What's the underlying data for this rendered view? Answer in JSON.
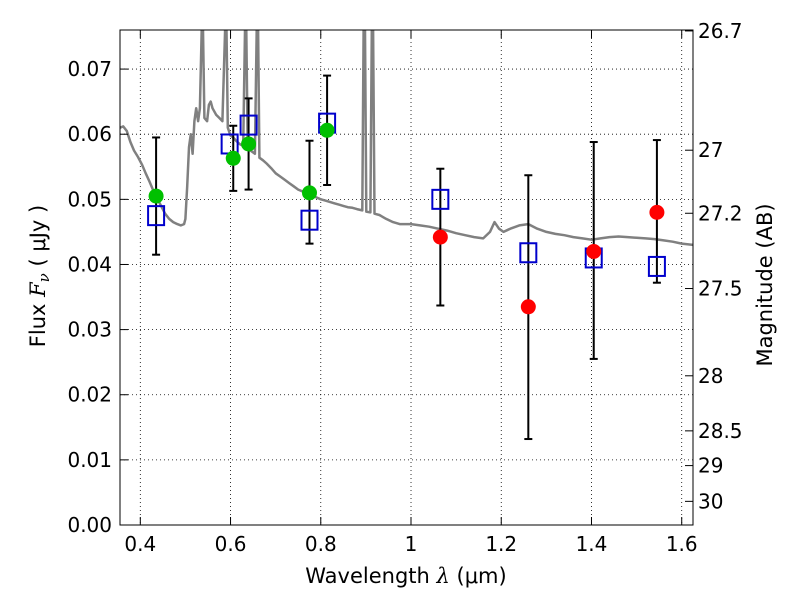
{
  "chart_data": {
    "type": "scatter",
    "xlabel": {
      "prefix": "Wavelength  ",
      "symbol": "λ",
      "unit": " (μm)"
    },
    "ylabel": {
      "prefix": "Flux  ",
      "symbol": "F",
      "sub": "ν",
      "unit": "  ( μJy )"
    },
    "y2label": "Magnitude (AB)",
    "xlim": [
      0.355,
      1.625
    ],
    "ylim": [
      0.0,
      0.076
    ],
    "xticks": [
      0.4,
      0.6,
      0.8,
      1.0,
      1.2,
      1.4,
      1.6
    ],
    "xtick_labels": [
      "0.4",
      "0.6",
      "0.8",
      "1",
      "1.2",
      "1.4",
      "1.6"
    ],
    "yticks": [
      0.0,
      0.01,
      0.02,
      0.03,
      0.04,
      0.05,
      0.06,
      0.07
    ],
    "ytick_labels": [
      "0.00",
      "0.01",
      "0.02",
      "0.03",
      "0.04",
      "0.05",
      "0.06",
      "0.07"
    ],
    "y2_ticks": [
      {
        "mag": 26.7,
        "label": "26.7"
      },
      {
        "mag": 27.0,
        "label": "27"
      },
      {
        "mag": 27.2,
        "label": "27.2"
      },
      {
        "mag": 27.5,
        "label": "27.5"
      },
      {
        "mag": 28.0,
        "label": "28"
      },
      {
        "mag": 28.5,
        "label": "28.5"
      },
      {
        "mag": 29.0,
        "label": "29"
      },
      {
        "mag": 30.0,
        "label": "30"
      }
    ],
    "grid": true,
    "colors": {
      "model": "#808080",
      "green": "#00c000",
      "red": "#ff0000",
      "model_points": "#0000cc",
      "errorbar": "#000000"
    },
    "observed": [
      {
        "x": 0.435,
        "y": 0.0505,
        "err_lo": 0.0415,
        "err_hi": 0.0595,
        "color": "green"
      },
      {
        "x": 0.606,
        "y": 0.0563,
        "err_lo": 0.0513,
        "err_hi": 0.0613,
        "color": "green"
      },
      {
        "x": 0.64,
        "y": 0.0585,
        "err_lo": 0.0515,
        "err_hi": 0.0655,
        "color": "green"
      },
      {
        "x": 0.775,
        "y": 0.051,
        "err_lo": 0.0432,
        "err_hi": 0.059,
        "color": "green"
      },
      {
        "x": 0.814,
        "y": 0.0606,
        "err_lo": 0.0522,
        "err_hi": 0.069,
        "color": "green"
      },
      {
        "x": 1.065,
        "y": 0.0442,
        "err_lo": 0.0337,
        "err_hi": 0.0547,
        "color": "red"
      },
      {
        "x": 1.26,
        "y": 0.0335,
        "err_lo": 0.0132,
        "err_hi": 0.0537,
        "color": "red"
      },
      {
        "x": 1.405,
        "y": 0.042,
        "err_lo": 0.0255,
        "err_hi": 0.0588,
        "color": "red"
      },
      {
        "x": 1.545,
        "y": 0.048,
        "err_lo": 0.0372,
        "err_hi": 0.0591,
        "color": "red"
      }
    ],
    "model_points": [
      {
        "x": 0.435,
        "y": 0.0475
      },
      {
        "x": 0.598,
        "y": 0.0585
      },
      {
        "x": 0.64,
        "y": 0.0614
      },
      {
        "x": 0.775,
        "y": 0.0468
      },
      {
        "x": 0.814,
        "y": 0.0617
      },
      {
        "x": 1.065,
        "y": 0.05
      },
      {
        "x": 1.26,
        "y": 0.0418
      },
      {
        "x": 1.405,
        "y": 0.041
      },
      {
        "x": 1.545,
        "y": 0.0397
      }
    ],
    "model_spectrum": [
      [
        0.355,
        0.061
      ],
      [
        0.362,
        0.0612
      ],
      [
        0.37,
        0.0605
      ],
      [
        0.378,
        0.0588
      ],
      [
        0.386,
        0.0575
      ],
      [
        0.395,
        0.0565
      ],
      [
        0.404,
        0.0553
      ],
      [
        0.412,
        0.054
      ],
      [
        0.42,
        0.0528
      ],
      [
        0.428,
        0.0515
      ],
      [
        0.437,
        0.0502
      ],
      [
        0.446,
        0.049
      ],
      [
        0.455,
        0.0478
      ],
      [
        0.464,
        0.047
      ],
      [
        0.473,
        0.0465
      ],
      [
        0.482,
        0.0462
      ],
      [
        0.49,
        0.046
      ],
      [
        0.497,
        0.0462
      ],
      [
        0.5,
        0.047
      ],
      [
        0.504,
        0.052
      ],
      [
        0.508,
        0.058
      ],
      [
        0.512,
        0.06
      ],
      [
        0.516,
        0.057
      ],
      [
        0.52,
        0.062
      ],
      [
        0.524,
        0.064
      ],
      [
        0.528,
        0.062
      ],
      [
        0.532,
        0.064
      ],
      [
        0.536,
        0.076
      ],
      [
        0.539,
        0.076
      ],
      [
        0.542,
        0.0625
      ],
      [
        0.548,
        0.062
      ],
      [
        0.552,
        0.0645
      ],
      [
        0.556,
        0.065
      ],
      [
        0.56,
        0.064
      ],
      [
        0.568,
        0.063
      ],
      [
        0.575,
        0.0625
      ],
      [
        0.582,
        0.062
      ],
      [
        0.588,
        0.076
      ],
      [
        0.591,
        0.076
      ],
      [
        0.594,
        0.061
      ],
      [
        0.6,
        0.0598
      ],
      [
        0.606,
        0.0595
      ],
      [
        0.612,
        0.059
      ],
      [
        0.62,
        0.0585
      ],
      [
        0.628,
        0.0582
      ],
      [
        0.632,
        0.076
      ],
      [
        0.635,
        0.076
      ],
      [
        0.638,
        0.0578
      ],
      [
        0.646,
        0.0574
      ],
      [
        0.654,
        0.057
      ],
      [
        0.658,
        0.076
      ],
      [
        0.661,
        0.076
      ],
      [
        0.664,
        0.0564
      ],
      [
        0.672,
        0.056
      ],
      [
        0.68,
        0.0555
      ],
      [
        0.69,
        0.0548
      ],
      [
        0.7,
        0.054
      ],
      [
        0.71,
        0.0535
      ],
      [
        0.72,
        0.053
      ],
      [
        0.73,
        0.0525
      ],
      [
        0.74,
        0.052
      ],
      [
        0.75,
        0.0515
      ],
      [
        0.76,
        0.0512
      ],
      [
        0.77,
        0.051
      ],
      [
        0.78,
        0.0506
      ],
      [
        0.79,
        0.0503
      ],
      [
        0.8,
        0.05
      ],
      [
        0.81,
        0.0498
      ],
      [
        0.82,
        0.0496
      ],
      [
        0.83,
        0.0494
      ],
      [
        0.84,
        0.0492
      ],
      [
        0.85,
        0.049
      ],
      [
        0.86,
        0.0488
      ],
      [
        0.87,
        0.0487
      ],
      [
        0.88,
        0.0485
      ],
      [
        0.892,
        0.0483
      ],
      [
        0.895,
        0.076
      ],
      [
        0.898,
        0.076
      ],
      [
        0.901,
        0.0481
      ],
      [
        0.91,
        0.048
      ],
      [
        0.913,
        0.076
      ],
      [
        0.916,
        0.076
      ],
      [
        0.919,
        0.0478
      ],
      [
        0.93,
        0.0476
      ],
      [
        0.945,
        0.047
      ],
      [
        0.96,
        0.0465
      ],
      [
        0.975,
        0.0462
      ],
      [
        0.99,
        0.0462
      ],
      [
        1.0,
        0.0462
      ],
      [
        1.02,
        0.046
      ],
      [
        1.04,
        0.0458
      ],
      [
        1.06,
        0.0455
      ],
      [
        1.08,
        0.0452
      ],
      [
        1.1,
        0.0448
      ],
      [
        1.12,
        0.0445
      ],
      [
        1.14,
        0.0442
      ],
      [
        1.16,
        0.044
      ],
      [
        1.175,
        0.045
      ],
      [
        1.185,
        0.0465
      ],
      [
        1.195,
        0.0455
      ],
      [
        1.205,
        0.045
      ],
      [
        1.22,
        0.0455
      ],
      [
        1.24,
        0.046
      ],
      [
        1.26,
        0.0462
      ],
      [
        1.28,
        0.0455
      ],
      [
        1.3,
        0.045
      ],
      [
        1.32,
        0.0447
      ],
      [
        1.34,
        0.0445
      ],
      [
        1.36,
        0.0442
      ],
      [
        1.38,
        0.044
      ],
      [
        1.4,
        0.0438
      ],
      [
        1.42,
        0.044
      ],
      [
        1.44,
        0.0442
      ],
      [
        1.46,
        0.0443
      ],
      [
        1.48,
        0.0442
      ],
      [
        1.5,
        0.0441
      ],
      [
        1.52,
        0.044
      ],
      [
        1.54,
        0.0439
      ],
      [
        1.56,
        0.0437
      ],
      [
        1.58,
        0.0435
      ],
      [
        1.6,
        0.0432
      ],
      [
        1.625,
        0.043
      ]
    ]
  }
}
